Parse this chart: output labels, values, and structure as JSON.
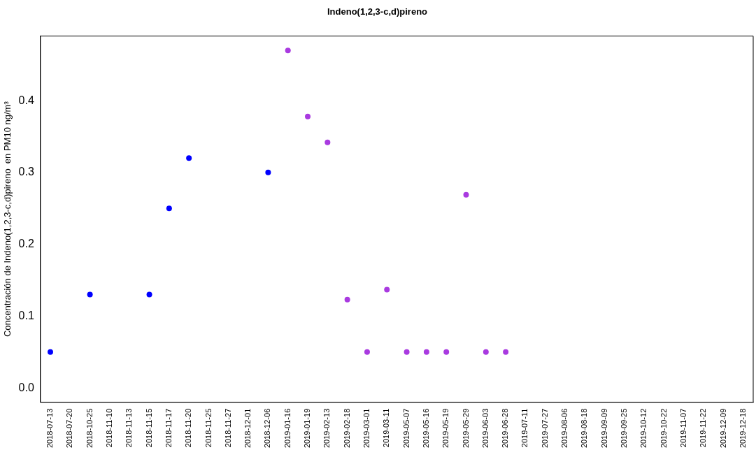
{
  "chart_data": {
    "type": "scatter",
    "title": "Indeno(1,2,3-c,d)pireno",
    "ylabel": "Concentración de Indeno(1,2,3-c,d)pireno  en PM10 ng/m³",
    "categories": [
      "2018-07-13",
      "2018-07-20",
      "2018-10-25",
      "2018-11-10",
      "2018-11-13",
      "2018-11-15",
      "2018-11-17",
      "2018-11-20",
      "2018-11-25",
      "2018-11-27",
      "2018-12-01",
      "2018-12-06",
      "2019-01-16",
      "2019-01-19",
      "2019-02-13",
      "2019-02-18",
      "2019-03-01",
      "2019-03-11",
      "2019-05-07",
      "2019-05-16",
      "2019-05-19",
      "2019-05-29",
      "2019-06-03",
      "2019-06-28",
      "2019-07-11",
      "2019-07-27",
      "2019-08-06",
      "2019-08-18",
      "2019-09-09",
      "2019-09-25",
      "2019-10-12",
      "2019-10-22",
      "2019-11-07",
      "2019-11-22",
      "2019-12-09",
      "2019-12-18"
    ],
    "series": [
      {
        "color": "#0000ff",
        "values": [
          0.05,
          null,
          0.13,
          null,
          null,
          0.13,
          0.25,
          0.32,
          null,
          null,
          null,
          0.3,
          null,
          null,
          null,
          null,
          null,
          null,
          null,
          null,
          null,
          null,
          null,
          null,
          null,
          null,
          null,
          null,
          null,
          null,
          null,
          null,
          null,
          null,
          null,
          null
        ]
      },
      {
        "color": "#a93ae0",
        "values": [
          null,
          null,
          null,
          null,
          null,
          null,
          null,
          null,
          null,
          null,
          null,
          null,
          0.47,
          0.378,
          0.342,
          0.123,
          0.05,
          0.137,
          0.05,
          0.05,
          0.05,
          0.269,
          0.05,
          0.05,
          null,
          null,
          null,
          null,
          null,
          null,
          null,
          null,
          null,
          null,
          null,
          null
        ]
      }
    ],
    "ylim": [
      -0.02,
      0.49
    ],
    "yticks": [
      {
        "value": 0,
        "label": "0.0"
      },
      {
        "value": 0.1,
        "label": "0.1"
      },
      {
        "value": 0.2,
        "label": "0.2"
      },
      {
        "value": 0.3,
        "label": "0.3"
      },
      {
        "value": 0.4,
        "label": "0.4"
      }
    ],
    "grid": false,
    "legend": false,
    "marker": "circle"
  }
}
